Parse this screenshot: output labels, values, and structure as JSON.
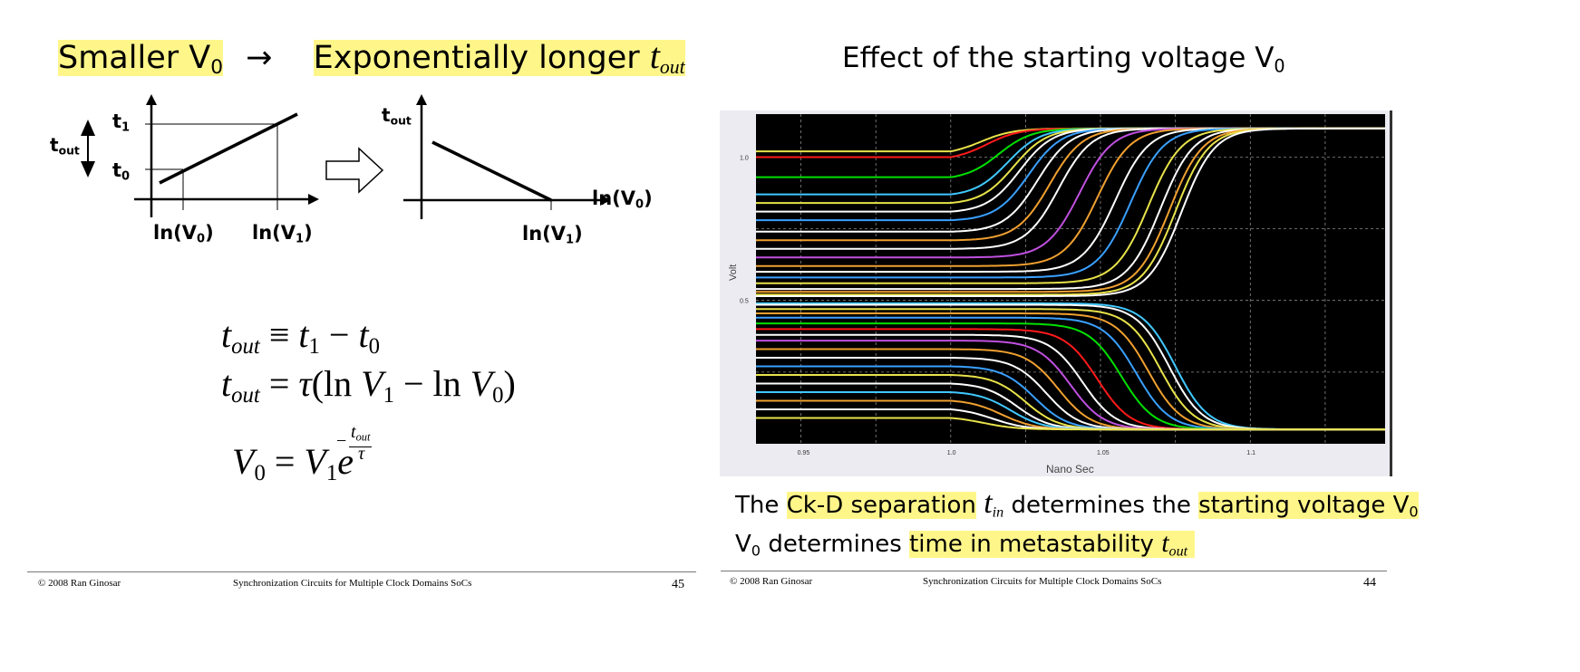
{
  "left_slide": {
    "title": {
      "part1": "Smaller V",
      "part1_sub": "0",
      "arrow": "→",
      "part2": "Exponentially longer",
      "var": "t",
      "var_sub": "out"
    },
    "diagram1": {
      "yaxis_label": "t",
      "yaxis_label_sub": "out",
      "t1": "t",
      "t1_sub": "1",
      "t0": "t",
      "t0_sub": "0",
      "x0": "ln(V",
      "x0_sub": "0",
      "x0_close": ")",
      "x1": "ln(V",
      "x1_sub": "1",
      "x1_close": ")"
    },
    "diagram2": {
      "yaxis_label": "t",
      "yaxis_label_sub": "out",
      "xaxis_label": "ln(V",
      "xaxis_label_sub": "0",
      "xaxis_label_close": ")",
      "x1": "ln(V",
      "x1_sub": "1",
      "x1_close": ")"
    },
    "equations": {
      "eq1_lhs": "t",
      "eq1_lhs_sub": "out",
      "eq1_op": "≡",
      "eq1_a": "t",
      "eq1_a_sub": "1",
      "eq1_minus": "−",
      "eq1_b": "t",
      "eq1_b_sub": "0",
      "eq2_lhs": "t",
      "eq2_lhs_sub": "out",
      "eq2_op": "=",
      "eq2_tau": "τ",
      "eq2_open": "(ln",
      "eq2_v1": "V",
      "eq2_v1_sub": "1",
      "eq2_minus": "− ln",
      "eq2_v0": "V",
      "eq2_v0_sub": "0",
      "eq2_close": ")",
      "eq3_lhs": "V",
      "eq3_lhs_sub": "0",
      "eq3_op": "=",
      "eq3_v1": "V",
      "eq3_v1_sub": "1",
      "eq3_e": "e",
      "eq3_exp_minus": "−",
      "eq3_exp_num": "t",
      "eq3_exp_num_sub": "out",
      "eq3_exp_den": "τ"
    },
    "footer": {
      "copyright": "© 2008 Ran Ginosar",
      "course": "Synchronization Circuits for Multiple Clock Domains SoCs",
      "page": "45"
    }
  },
  "right_slide": {
    "title": "Effect of the starting voltage V",
    "title_sub": "0",
    "chart": {
      "ylabel": "Volt",
      "xlabel": "Nano Sec",
      "ytick_hi": "1.0",
      "ytick_mid": "0.5",
      "xticks": [
        "0.95",
        "1.0",
        "1.05",
        "1.1"
      ]
    },
    "line1": {
      "pre": "The",
      "hl1": "Ck-D separation",
      "var": "t",
      "var_sub": "in",
      "mid": "determines the",
      "hl2": "starting voltage V",
      "hl2_sub": "0"
    },
    "line2": {
      "v": "V",
      "v_sub": "0",
      "mid": "determines",
      "hl": "time in metastability",
      "var": "t",
      "var_sub": "out"
    },
    "footer": {
      "copyright": "© 2008 Ran Ginosar",
      "course": "Synchronization Circuits for Multiple Clock Domains SoCs",
      "page": "44"
    }
  },
  "chart_data": {
    "type": "line",
    "title": "",
    "xlabel": "Nano Sec",
    "ylabel": "Volt",
    "xlim": [
      0.935,
      1.145
    ],
    "ylim": [
      0.0,
      1.15
    ],
    "xticks": [
      0.95,
      1.0,
      1.05,
      1.1
    ],
    "yticks": [
      0.5,
      1.0
    ],
    "grid": true,
    "background": "#000000",
    "series": [
      {
        "color": "#e8e34a",
        "start": 1.02,
        "end": 1.1,
        "resolve": 1.01
      },
      {
        "color": "#ff1a1a",
        "start": 1.0,
        "end": 1.1,
        "resolve": 1.012
      },
      {
        "color": "#00e000",
        "start": 0.93,
        "end": 1.1,
        "resolve": 1.016
      },
      {
        "color": "#40c8ff",
        "start": 0.87,
        "end": 1.1,
        "resolve": 1.019
      },
      {
        "color": "#e8e34a",
        "start": 0.84,
        "end": 1.1,
        "resolve": 1.021
      },
      {
        "color": "#ffffff",
        "start": 0.81,
        "end": 1.1,
        "resolve": 1.023
      },
      {
        "color": "#3aa0ff",
        "start": 0.78,
        "end": 1.1,
        "resolve": 1.026
      },
      {
        "color": "#ffffff",
        "start": 0.74,
        "end": 1.1,
        "resolve": 1.029
      },
      {
        "color": "#f0a030",
        "start": 0.71,
        "end": 1.1,
        "resolve": 1.033
      },
      {
        "color": "#ffffff",
        "start": 0.68,
        "end": 1.1,
        "resolve": 1.036
      },
      {
        "color": "#c050e0",
        "start": 0.65,
        "end": 1.1,
        "resolve": 1.043
      },
      {
        "color": "#f0a030",
        "start": 0.62,
        "end": 1.1,
        "resolve": 1.049
      },
      {
        "color": "#ffffff",
        "start": 0.6,
        "end": 1.1,
        "resolve": 1.055
      },
      {
        "color": "#3aa0ff",
        "start": 0.58,
        "end": 1.1,
        "resolve": 1.06
      },
      {
        "color": "#e8e34a",
        "start": 0.56,
        "end": 1.1,
        "resolve": 1.066
      },
      {
        "color": "#ffffff",
        "start": 0.54,
        "end": 1.1,
        "resolve": 1.07
      },
      {
        "color": "#f0a030",
        "start": 0.53,
        "end": 1.1,
        "resolve": 1.073
      },
      {
        "color": "#e8e34a",
        "start": 0.52,
        "end": 1.1,
        "resolve": 1.075
      },
      {
        "color": "#ffffff",
        "start": 0.515,
        "end": 1.1,
        "resolve": 1.077
      },
      {
        "color": "#40c8ff",
        "start": 0.49,
        "end": 0.05,
        "resolve": 1.075
      },
      {
        "color": "#ffffff",
        "start": 0.485,
        "end": 0.05,
        "resolve": 1.073
      },
      {
        "color": "#e8e34a",
        "start": 0.47,
        "end": 0.05,
        "resolve": 1.07
      },
      {
        "color": "#f0a030",
        "start": 0.455,
        "end": 0.05,
        "resolve": 1.066
      },
      {
        "color": "#3aa0ff",
        "start": 0.44,
        "end": 0.05,
        "resolve": 1.062
      },
      {
        "color": "#00e000",
        "start": 0.42,
        "end": 0.05,
        "resolve": 1.057
      },
      {
        "color": "#ff1a1a",
        "start": 0.4,
        "end": 0.05,
        "resolve": 1.049
      },
      {
        "color": "#ffffff",
        "start": 0.38,
        "end": 0.05,
        "resolve": 1.044
      },
      {
        "color": "#c050e0",
        "start": 0.36,
        "end": 0.05,
        "resolve": 1.04
      },
      {
        "color": "#f0a030",
        "start": 0.33,
        "end": 0.05,
        "resolve": 1.036
      },
      {
        "color": "#ffffff",
        "start": 0.3,
        "end": 0.05,
        "resolve": 1.032
      },
      {
        "color": "#3aa0ff",
        "start": 0.27,
        "end": 0.05,
        "resolve": 1.028
      },
      {
        "color": "#e8e34a",
        "start": 0.24,
        "end": 0.05,
        "resolve": 1.025
      },
      {
        "color": "#ffffff",
        "start": 0.21,
        "end": 0.05,
        "resolve": 1.022
      },
      {
        "color": "#40c8ff",
        "start": 0.18,
        "end": 0.05,
        "resolve": 1.02
      },
      {
        "color": "#f0a030",
        "start": 0.15,
        "end": 0.05,
        "resolve": 1.017
      },
      {
        "color": "#ffffff",
        "start": 0.12,
        "end": 0.05,
        "resolve": 1.014
      },
      {
        "color": "#e8e34a",
        "start": 0.09,
        "end": 0.05,
        "resolve": 1.011
      }
    ]
  }
}
